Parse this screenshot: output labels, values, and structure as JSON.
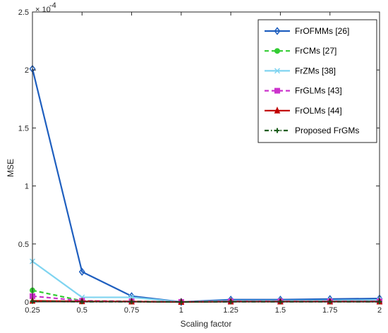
{
  "chart_data": {
    "type": "line",
    "title": "",
    "xlabel": "Scaling factor",
    "ylabel": "MSE",
    "y_multiplier": "× 10",
    "y_exponent": "-4",
    "x": [
      0.25,
      0.5,
      0.75,
      1,
      1.25,
      1.5,
      1.75,
      2
    ],
    "xticks": [
      "0.25",
      "0.5",
      "0.75",
      "1",
      "1.25",
      "1.5",
      "1.75",
      "2"
    ],
    "yticks": [
      "0",
      "0.5",
      "1",
      "1.5",
      "2",
      "2.5"
    ],
    "xlim": [
      0.25,
      2
    ],
    "ylim": [
      0,
      2.5
    ],
    "grid": false,
    "legend_position": "top-right",
    "series": [
      {
        "name": "FrOFMMs [26]",
        "values": [
          2.01,
          0.26,
          0.05,
          0.0,
          0.02,
          0.02,
          0.025,
          0.03
        ],
        "color": "#1f5fbf",
        "dash": "solid",
        "marker": "diamond"
      },
      {
        "name": "FrCMs [27]",
        "values": [
          0.1,
          0.01,
          0.005,
          0.0,
          0.005,
          0.005,
          0.005,
          0.005
        ],
        "color": "#33cc33",
        "dash": "dashed",
        "marker": "circle"
      },
      {
        "name": "FrZMs [38]",
        "values": [
          0.35,
          0.04,
          0.04,
          0.0,
          0.01,
          0.01,
          0.012,
          0.015
        ],
        "color": "#7fd4f0",
        "dash": "solid",
        "marker": "x"
      },
      {
        "name": "FrGLMs [43]",
        "values": [
          0.05,
          0.01,
          0.005,
          0.0,
          0.005,
          0.005,
          0.005,
          0.005
        ],
        "color": "#cc33cc",
        "dash": "dashed",
        "marker": "square"
      },
      {
        "name": "FrOLMs [44]",
        "values": [
          0.01,
          0.005,
          0.003,
          0.0,
          0.003,
          0.003,
          0.003,
          0.003
        ],
        "color": "#c00000",
        "dash": "solid",
        "marker": "triangle"
      },
      {
        "name": "Proposed FrGMs",
        "values": [
          0.005,
          0.002,
          0.002,
          0.0,
          0.002,
          0.002,
          0.002,
          0.002
        ],
        "color": "#1a5c1a",
        "dash": "dashdot",
        "marker": "plus"
      }
    ]
  }
}
